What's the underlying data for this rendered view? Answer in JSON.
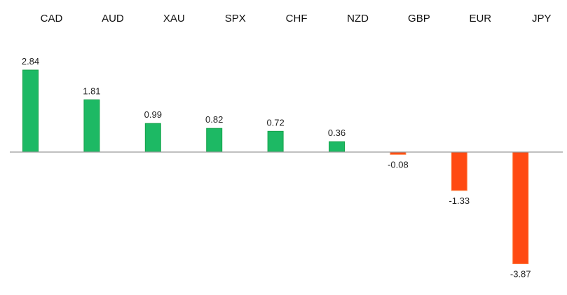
{
  "chart_data": {
    "type": "bar",
    "categories": [
      "CAD",
      "AUD",
      "XAU",
      "SPX",
      "CHF",
      "NZD",
      "GBP",
      "EUR",
      "JPY"
    ],
    "values": [
      2.84,
      1.81,
      0.99,
      0.82,
      0.72,
      0.36,
      -0.08,
      -1.33,
      -3.87
    ],
    "value_labels": [
      "2.84",
      "1.81",
      "0.99",
      "0.82",
      "0.72",
      "0.36",
      "-0.08",
      "-1.33",
      "-3.87"
    ],
    "title": "",
    "xlabel": "",
    "ylabel": "",
    "ylim": [
      -4.8,
      5.2
    ],
    "category_label_placement": "top",
    "grid": false,
    "legend": "none",
    "colors": {
      "positive": "#1db964",
      "positive_edge": "#16a34a",
      "negative": "#ff4a12",
      "negative_edge": "#ff7a3c",
      "axis": "#9a9a9a"
    }
  }
}
